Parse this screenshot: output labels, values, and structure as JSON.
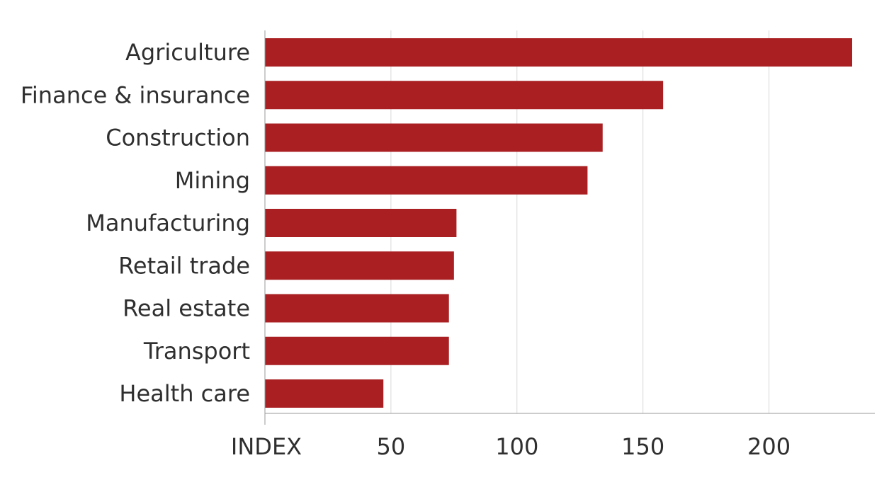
{
  "chart_data": {
    "type": "bar",
    "orientation": "horizontal",
    "categories": [
      "Agriculture",
      "Finance & insurance",
      "Construction",
      "Mining",
      "Manufacturing",
      "Retail trade",
      "Real estate",
      "Transport",
      "Health care"
    ],
    "values": [
      233,
      158,
      134,
      128,
      76,
      75,
      73,
      73,
      47
    ],
    "x_ticks": [
      {
        "value": 0,
        "label": "INDEX"
      },
      {
        "value": 50,
        "label": "50"
      },
      {
        "value": 100,
        "label": "100"
      },
      {
        "value": 150,
        "label": "150"
      },
      {
        "value": 200,
        "label": "200"
      }
    ],
    "xlim": [
      0,
      242
    ],
    "grid": "vertical",
    "bar_color": "#a91f22",
    "grid_color": "#d8d8d8",
    "axis_color": "#9a9a9a",
    "text_color": "#2f2f2f"
  }
}
